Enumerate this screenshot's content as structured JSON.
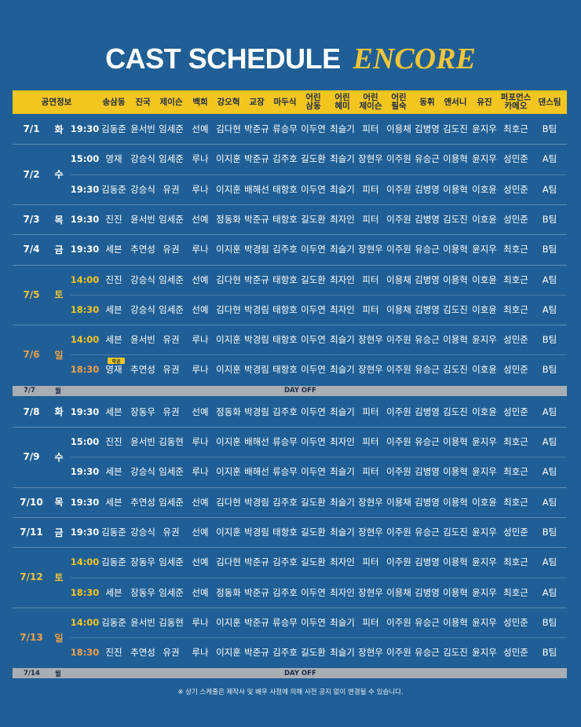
{
  "title": "CAST SCHEDULE",
  "subtitle": "ENCORE",
  "colors": {
    "background": "#1f5f95",
    "header": "#f3c51f",
    "dayoff": "#a8aeb5",
    "matinee": "#f3c51f",
    "weekend_date": "#f0c53a",
    "sunday_date": "#f0a04b"
  },
  "headers": [
    "공연정보",
    "송삼동",
    "진국",
    "제이슨",
    "백희",
    "강오혁",
    "교장",
    "마두식",
    "어린\n삼동",
    "어린\n혜미",
    "어린\n제이슨",
    "어린\n필숙",
    "동휘",
    "앤서니",
    "유진",
    "퍼포먼스\n카메오",
    "댄스팀"
  ],
  "schedule": [
    {
      "date": "7/1",
      "day": "화",
      "shows": [
        {
          "time": "19:30",
          "cast": [
            "김동준",
            "윤서빈",
            "임세준",
            "선예",
            "김다현",
            "박준규",
            "류승무",
            "이두연",
            "최슬기",
            "피터",
            "이용채",
            "김병영",
            "김도진",
            "윤지우",
            "최호근",
            "B팀"
          ]
        }
      ]
    },
    {
      "date": "7/2",
      "day": "수",
      "shows": [
        {
          "time": "15:00",
          "cast": [
            "영재",
            "강승식",
            "임세준",
            "루나",
            "이지훈",
            "박준규",
            "김주호",
            "길도환",
            "최슬기",
            "장현우",
            "이주원",
            "유승근",
            "이용혁",
            "윤지우",
            "성민준",
            "A팀"
          ]
        },
        {
          "time": "19:30",
          "cast": [
            "김동준",
            "강승식",
            "유권",
            "루나",
            "이지훈",
            "배해선",
            "태항호",
            "이두연",
            "최슬기",
            "피터",
            "이주원",
            "김병영",
            "이용혁",
            "이호윤",
            "성민준",
            "A팀"
          ]
        }
      ]
    },
    {
      "date": "7/3",
      "day": "목",
      "shows": [
        {
          "time": "19:30",
          "cast": [
            "진진",
            "윤서빈",
            "임세준",
            "선예",
            "정동화",
            "박준규",
            "태항호",
            "길도환",
            "최자인",
            "피터",
            "이주원",
            "김병영",
            "김도진",
            "이호윤",
            "성민준",
            "B팀"
          ]
        }
      ]
    },
    {
      "date": "7/4",
      "day": "금",
      "shows": [
        {
          "time": "19:30",
          "cast": [
            "세븐",
            "추연성",
            "유권",
            "루나",
            "이지훈",
            "박경림",
            "김주호",
            "이두연",
            "최슬기",
            "장현우",
            "이주원",
            "유승근",
            "이용혁",
            "윤지우",
            "최호근",
            "B팀"
          ]
        }
      ]
    },
    {
      "date": "7/5",
      "day": "토",
      "shows": [
        {
          "time": "14:00",
          "cast": [
            "진진",
            "강승식",
            "임세준",
            "선예",
            "김다현",
            "박준규",
            "태항호",
            "길도환",
            "최자인",
            "피터",
            "이용채",
            "김병영",
            "이용혁",
            "이호윤",
            "최호근",
            "A팀"
          ]
        },
        {
          "time": "18:30",
          "cast": [
            "세븐",
            "강승식",
            "임세준",
            "선예",
            "김다현",
            "박경림",
            "태항호",
            "이두연",
            "최자인",
            "피터",
            "이용채",
            "김병영",
            "김도진",
            "이호윤",
            "최호근",
            "A팀"
          ]
        }
      ]
    },
    {
      "date": "7/6",
      "day": "일",
      "shows": [
        {
          "time": "14:00",
          "cast": [
            "세븐",
            "윤서빈",
            "유권",
            "루나",
            "이지훈",
            "박경림",
            "태항호",
            "이두연",
            "최슬기",
            "장현우",
            "이주원",
            "유승근",
            "이용혁",
            "윤지우",
            "성민준",
            "B팀"
          ]
        },
        {
          "time": "18:30",
          "cast": [
            "영재",
            "추연성",
            "유권",
            "루나",
            "이지훈",
            "박경림",
            "태항호",
            "이두연",
            "최슬기",
            "장현우",
            "이주원",
            "유승근",
            "김도진",
            "이호윤",
            "성민준",
            "B팀"
          ]
        }
      ]
    },
    {
      "date": "7/8",
      "day": "화",
      "shows": [
        {
          "time": "19:30",
          "cast": [
            "세븐",
            "장동우",
            "유권",
            "선예",
            "정동화",
            "박경림",
            "김주호",
            "이두연",
            "최슬기",
            "피터",
            "이주원",
            "김병영",
            "김도진",
            "이호윤",
            "성민준",
            "A팀"
          ]
        }
      ]
    },
    {
      "date": "7/9",
      "day": "수",
      "shows": [
        {
          "time": "15:00",
          "cast": [
            "진진",
            "윤서빈",
            "김동현",
            "루나",
            "이지훈",
            "배해선",
            "류승무",
            "이두연",
            "최자인",
            "피터",
            "이주원",
            "유승근",
            "이용혁",
            "윤지우",
            "최호근",
            "A팀"
          ]
        },
        {
          "time": "19:30",
          "cast": [
            "세븐",
            "강승식",
            "임세준",
            "루나",
            "이지훈",
            "배해선",
            "류승무",
            "이두연",
            "최슬기",
            "피터",
            "이주원",
            "김병영",
            "이용혁",
            "윤지우",
            "최호근",
            "A팀"
          ]
        }
      ]
    },
    {
      "date": "7/10",
      "day": "목",
      "shows": [
        {
          "time": "19:30",
          "cast": [
            "세븐",
            "추연성",
            "임세준",
            "선예",
            "김다현",
            "박경림",
            "김주호",
            "길도환",
            "최슬기",
            "장현우",
            "이용채",
            "김병영",
            "이용혁",
            "이호윤",
            "최호근",
            "A팀"
          ]
        }
      ]
    },
    {
      "date": "7/11",
      "day": "금",
      "shows": [
        {
          "time": "19:30",
          "cast": [
            "김동준",
            "강승식",
            "유권",
            "선예",
            "이지훈",
            "박경림",
            "태항호",
            "길도환",
            "최슬기",
            "장현우",
            "이주원",
            "유승근",
            "김도진",
            "윤지우",
            "성민준",
            "B팀"
          ]
        }
      ]
    },
    {
      "date": "7/12",
      "day": "토",
      "shows": [
        {
          "time": "14:00",
          "cast": [
            "김동준",
            "장동우",
            "임세준",
            "선예",
            "김다현",
            "박준규",
            "김주호",
            "길도환",
            "최자인",
            "피터",
            "이주원",
            "김병영",
            "이용혁",
            "윤지우",
            "최호근",
            "A팀"
          ]
        },
        {
          "time": "18:30",
          "cast": [
            "세븐",
            "장동우",
            "임세준",
            "선예",
            "정동화",
            "박준규",
            "김주호",
            "이두연",
            "최자인",
            "장현우",
            "이용채",
            "김병영",
            "이용혁",
            "윤지우",
            "최호근",
            "A팀"
          ]
        }
      ]
    },
    {
      "date": "7/13",
      "day": "일",
      "shows": [
        {
          "time": "14:00",
          "cast": [
            "김동준",
            "윤서빈",
            "김동현",
            "루나",
            "이지훈",
            "박준규",
            "류승무",
            "이두연",
            "최슬기",
            "피터",
            "이주원",
            "유승근",
            "이용혁",
            "윤지우",
            "성민준",
            "B팀"
          ]
        },
        {
          "time": "18:30",
          "cast": [
            "진진",
            "추연성",
            "유권",
            "루나",
            "이지훈",
            "박준규",
            "김주호",
            "길도환",
            "최슬기",
            "장현우",
            "이주원",
            "유승근",
            "김도진",
            "윤지우",
            "성민준",
            "B팀"
          ]
        }
      ]
    }
  ],
  "dayoffs": [
    {
      "date": "7/7",
      "day": "월",
      "label": "DAY OFF"
    },
    {
      "date": "7/14",
      "day": "월",
      "label": "DAY OFF"
    }
  ],
  "badge": "막공",
  "footnote": "※ 상기 스케줄은 제작사 및 배우 사정에 의해 사전 공지 없이 변경될 수 있습니다."
}
